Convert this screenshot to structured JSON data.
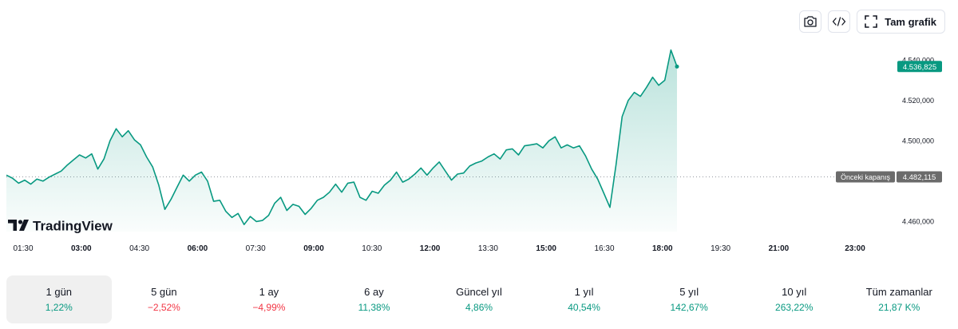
{
  "toolbar": {
    "snapshot_icon": "camera-icon",
    "embed_icon": "code-icon",
    "fullscreen_icon": "fullscreen-icon",
    "full_chart_label": "Tam grafik"
  },
  "brand": {
    "logo_text": "TradingView",
    "logo_icon": "tv-logo-icon"
  },
  "colors": {
    "line": "#089981",
    "positive": "#089981",
    "negative": "#f23645",
    "prev_close_bg": "#6b6b6b",
    "price_bg": "#089981"
  },
  "chart_data": {
    "type": "area",
    "x_ticks": [
      {
        "label": "01:30",
        "bold": false
      },
      {
        "label": "03:00",
        "bold": true
      },
      {
        "label": "04:30",
        "bold": false
      },
      {
        "label": "06:00",
        "bold": true
      },
      {
        "label": "07:30",
        "bold": false
      },
      {
        "label": "09:00",
        "bold": true
      },
      {
        "label": "10:30",
        "bold": false
      },
      {
        "label": "12:00",
        "bold": true
      },
      {
        "label": "13:30",
        "bold": false
      },
      {
        "label": "15:00",
        "bold": true
      },
      {
        "label": "16:30",
        "bold": false
      },
      {
        "label": "18:00",
        "bold": true
      },
      {
        "label": "19:30",
        "bold": false
      },
      {
        "label": "21:00",
        "bold": true
      },
      {
        "label": "23:00",
        "bold": true
      }
    ],
    "y_ticks": [
      {
        "value": 4540000,
        "label": "4.540,000"
      },
      {
        "value": 4520000,
        "label": "4.520,000"
      },
      {
        "value": 4500000,
        "label": "4.500,000"
      },
      {
        "value": 4460000,
        "label": "4.460,000"
      }
    ],
    "ylim": [
      4455000,
      4550000
    ],
    "current_price": {
      "value": 4536825,
      "label": "4.536,825"
    },
    "previous_close": {
      "value": 4482115,
      "label": "4.482,115",
      "name": "Önceki kapanış"
    },
    "series": [
      {
        "values": [
          4483000,
          4481500,
          4479000,
          4480500,
          4478500,
          4481000,
          4480000,
          4482000,
          4483500,
          4485000,
          4488000,
          4490500,
          4493000,
          4491500,
          4493500,
          4486000,
          4491000,
          4500000,
          4506000,
          4502000,
          4505000,
          4500500,
          4498000,
          4492000,
          4487000,
          4478000,
          4466000,
          4471000,
          4477000,
          4483000,
          4480000,
          4483000,
          4484500,
          4480000,
          4470000,
          4470500,
          4465000,
          4462000,
          4464000,
          4458500,
          4462500,
          4460000,
          4460500,
          4463000,
          4469000,
          4472000,
          4465500,
          4468500,
          4467500,
          4463500,
          4466500,
          4470500,
          4472000,
          4474500,
          4478500,
          4474500,
          4479000,
          4479500,
          4472000,
          4470500,
          4475000,
          4474000,
          4478000,
          4480500,
          4484500,
          4479500,
          4481000,
          4483500,
          4486500,
          4483000,
          4486500,
          4489500,
          4485000,
          4480500,
          4483500,
          4484000,
          4487500,
          4489000,
          4490000,
          4492000,
          4493500,
          4491000,
          4495500,
          4496000,
          4493000,
          4497500,
          4498000,
          4498500,
          4496500,
          4500000,
          4502000,
          4496500,
          4498000,
          4496500,
          4497500,
          4492500,
          4486000,
          4481000,
          4474000,
          4467000,
          4488000,
          4512000,
          4520000,
          4524000,
          4522000,
          4526500,
          4531500,
          4527500,
          4530000,
          4545000,
          4536800
        ]
      }
    ]
  },
  "periods": [
    {
      "name": "1 gün",
      "value": "1,22%",
      "sign": "pos",
      "active": true
    },
    {
      "name": "5 gün",
      "value": "−2,52%",
      "sign": "neg",
      "active": false
    },
    {
      "name": "1 ay",
      "value": "−4,99%",
      "sign": "neg",
      "active": false
    },
    {
      "name": "6 ay",
      "value": "11,38%",
      "sign": "pos",
      "active": false
    },
    {
      "name": "Güncel yıl",
      "value": "4,86%",
      "sign": "pos",
      "active": false
    },
    {
      "name": "1 yıl",
      "value": "40,54%",
      "sign": "pos",
      "active": false
    },
    {
      "name": "5 yıl",
      "value": "142,67%",
      "sign": "pos",
      "active": false
    },
    {
      "name": "10 yıl",
      "value": "263,22%",
      "sign": "pos",
      "active": false
    },
    {
      "name": "Tüm zamanlar",
      "value": "21,87 K%",
      "sign": "pos",
      "active": false
    }
  ]
}
